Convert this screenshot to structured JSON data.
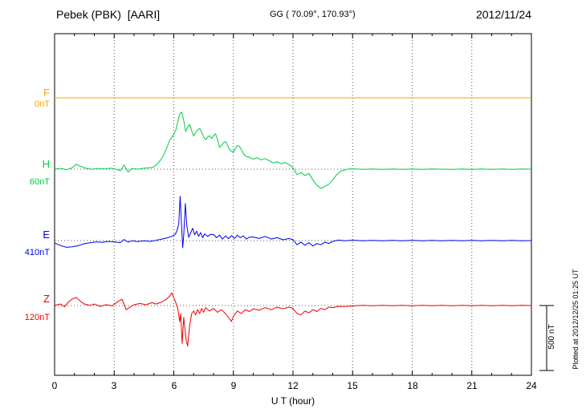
{
  "header": {
    "station": "Pebek (PBK)  [AARI]",
    "coords": "GG ( 70.09°, 170.93°)",
    "date": "2012/11/24"
  },
  "axis": {
    "x_ticks": [
      0,
      3,
      6,
      9,
      12,
      15,
      18,
      21,
      24
    ],
    "x_label": "U T (hour)"
  },
  "right_annotations": {
    "scale_label": "500 nT",
    "plotted_at": "Plotted at 2012/12/25 01:25 UT"
  },
  "chart_data": {
    "type": "line",
    "title": "Pebek (PBK) [AARI] magnetogram 2012/11/24",
    "xlabel": "U T (hour)",
    "x_range": [
      0,
      24
    ],
    "scale_bar_nT": 500,
    "grid": "dotted",
    "series": [
      {
        "name": "F",
        "baseline_label": "0nT",
        "color": "#FFA500",
        "points": [
          [
            0,
            0
          ],
          [
            3,
            0
          ],
          [
            6,
            0
          ],
          [
            9,
            0
          ],
          [
            12,
            0
          ],
          [
            15,
            0
          ],
          [
            18,
            0
          ],
          [
            21,
            0
          ],
          [
            24,
            0
          ]
        ]
      },
      {
        "name": "H",
        "baseline_label": "60nT",
        "color": "#00CC44",
        "points": [
          [
            0,
            2
          ],
          [
            0.3,
            6
          ],
          [
            0.6,
            -4
          ],
          [
            0.9,
            12
          ],
          [
            1.1,
            38
          ],
          [
            1.3,
            22
          ],
          [
            1.6,
            6
          ],
          [
            1.9,
            0
          ],
          [
            2.2,
            6
          ],
          [
            2.5,
            2
          ],
          [
            2.8,
            8
          ],
          [
            3.1,
            0
          ],
          [
            3.3,
            -12
          ],
          [
            3.5,
            32
          ],
          [
            3.7,
            -22
          ],
          [
            3.9,
            6
          ],
          [
            4.2,
            0
          ],
          [
            4.5,
            8
          ],
          [
            4.8,
            12
          ],
          [
            5,
            18
          ],
          [
            5.2,
            45
          ],
          [
            5.4,
            85
          ],
          [
            5.6,
            145
          ],
          [
            5.8,
            225
          ],
          [
            5.95,
            255
          ],
          [
            6.1,
            300
          ],
          [
            6.2,
            365
          ],
          [
            6.3,
            425
          ],
          [
            6.4,
            440
          ],
          [
            6.5,
            375
          ],
          [
            6.6,
            290
          ],
          [
            6.7,
            325
          ],
          [
            6.8,
            345
          ],
          [
            6.9,
            295
          ],
          [
            7,
            255
          ],
          [
            7.1,
            285
          ],
          [
            7.2,
            300
          ],
          [
            7.3,
            315
          ],
          [
            7.4,
            288
          ],
          [
            7.5,
            250
          ],
          [
            7.6,
            228
          ],
          [
            7.7,
            245
          ],
          [
            7.8,
            258
          ],
          [
            7.9,
            235
          ],
          [
            8,
            258
          ],
          [
            8.1,
            272
          ],
          [
            8.2,
            232
          ],
          [
            8.3,
            168
          ],
          [
            8.4,
            182
          ],
          [
            8.5,
            205
          ],
          [
            8.6,
            212
          ],
          [
            8.7,
            188
          ],
          [
            8.8,
            152
          ],
          [
            8.9,
            138
          ],
          [
            9,
            132
          ],
          [
            9.1,
            162
          ],
          [
            9.2,
            182
          ],
          [
            9.3,
            175
          ],
          [
            9.4,
            152
          ],
          [
            9.5,
            122
          ],
          [
            9.6,
            102
          ],
          [
            9.8,
            92
          ],
          [
            10,
            78
          ],
          [
            10.2,
            88
          ],
          [
            10.4,
            72
          ],
          [
            10.6,
            82
          ],
          [
            10.8,
            66
          ],
          [
            11,
            48
          ],
          [
            11.2,
            58
          ],
          [
            11.4,
            42
          ],
          [
            11.6,
            52
          ],
          [
            11.8,
            36
          ],
          [
            12,
            12
          ],
          [
            12.2,
            -42
          ],
          [
            12.4,
            -26
          ],
          [
            12.6,
            -48
          ],
          [
            12.8,
            -32
          ],
          [
            13,
            -82
          ],
          [
            13.2,
            -122
          ],
          [
            13.4,
            -148
          ],
          [
            13.6,
            -132
          ],
          [
            13.8,
            -116
          ],
          [
            14,
            -82
          ],
          [
            14.2,
            -42
          ],
          [
            14.4,
            -16
          ],
          [
            14.6,
            -6
          ],
          [
            14.8,
            2
          ],
          [
            15,
            3
          ],
          [
            15.5,
            -2
          ],
          [
            16,
            2
          ],
          [
            16.5,
            -1
          ],
          [
            17,
            2
          ],
          [
            17.5,
            -2
          ],
          [
            18,
            1
          ],
          [
            18.5,
            -2
          ],
          [
            19,
            2
          ],
          [
            19.5,
            0
          ],
          [
            20,
            -2
          ],
          [
            20.5,
            2
          ],
          [
            21,
            -1
          ],
          [
            21.5,
            1
          ],
          [
            22,
            -2
          ],
          [
            22.5,
            2
          ],
          [
            23,
            -1
          ],
          [
            23.5,
            1
          ],
          [
            24,
            0
          ]
        ]
      },
      {
        "name": "E",
        "baseline_label": "410nT",
        "color": "#0000EE",
        "points": [
          [
            0,
            -18
          ],
          [
            0.3,
            -38
          ],
          [
            0.6,
            -52
          ],
          [
            0.9,
            -48
          ],
          [
            1.2,
            -38
          ],
          [
            1.5,
            -24
          ],
          [
            1.8,
            -16
          ],
          [
            2.1,
            -10
          ],
          [
            2.4,
            -14
          ],
          [
            2.7,
            -6
          ],
          [
            3,
            -10
          ],
          [
            3.3,
            -16
          ],
          [
            3.5,
            8
          ],
          [
            3.7,
            -12
          ],
          [
            3.9,
            -2
          ],
          [
            4.2,
            -8
          ],
          [
            4.5,
            -2
          ],
          [
            4.8,
            -6
          ],
          [
            5.1,
            2
          ],
          [
            5.4,
            12
          ],
          [
            5.7,
            22
          ],
          [
            5.9,
            32
          ],
          [
            6.05,
            45
          ],
          [
            6.15,
            70
          ],
          [
            6.25,
            130
          ],
          [
            6.32,
            340
          ],
          [
            6.4,
            90
          ],
          [
            6.45,
            -55
          ],
          [
            6.5,
            45
          ],
          [
            6.58,
            285
          ],
          [
            6.65,
            120
          ],
          [
            6.75,
            25
          ],
          [
            6.85,
            60
          ],
          [
            6.95,
            95
          ],
          [
            7.05,
            45
          ],
          [
            7.15,
            72
          ],
          [
            7.25,
            32
          ],
          [
            7.35,
            62
          ],
          [
            7.45,
            22
          ],
          [
            7.55,
            52
          ],
          [
            7.7,
            32
          ],
          [
            7.85,
            48
          ],
          [
            8,
            46
          ],
          [
            8.15,
            22
          ],
          [
            8.3,
            42
          ],
          [
            8.45,
            12
          ],
          [
            8.6,
            36
          ],
          [
            8.75,
            15
          ],
          [
            8.9,
            38
          ],
          [
            9.05,
            16
          ],
          [
            9.2,
            42
          ],
          [
            9.35,
            22
          ],
          [
            9.5,
            36
          ],
          [
            9.65,
            12
          ],
          [
            9.8,
            26
          ],
          [
            10,
            28
          ],
          [
            10.3,
            16
          ],
          [
            10.6,
            32
          ],
          [
            10.9,
            12
          ],
          [
            11.2,
            22
          ],
          [
            11.5,
            6
          ],
          [
            11.8,
            16
          ],
          [
            12,
            6
          ],
          [
            12.2,
            -32
          ],
          [
            12.4,
            -12
          ],
          [
            12.6,
            -36
          ],
          [
            12.8,
            -16
          ],
          [
            13,
            -42
          ],
          [
            13.2,
            -22
          ],
          [
            13.4,
            -32
          ],
          [
            13.6,
            -12
          ],
          [
            13.8,
            -22
          ],
          [
            14,
            -6
          ],
          [
            14.3,
            4
          ],
          [
            14.6,
            -2
          ],
          [
            15,
            3
          ],
          [
            15.5,
            -2
          ],
          [
            16,
            2
          ],
          [
            16.5,
            -2
          ],
          [
            17,
            1
          ],
          [
            17.5,
            -1
          ],
          [
            18,
            2
          ],
          [
            18.5,
            -2
          ],
          [
            19,
            1
          ],
          [
            19.5,
            -1
          ],
          [
            20,
            2
          ],
          [
            20.5,
            -1
          ],
          [
            21,
            1
          ],
          [
            21.5,
            -2
          ],
          [
            22,
            2
          ],
          [
            22.5,
            -1
          ],
          [
            23,
            1
          ],
          [
            23.5,
            -1
          ],
          [
            24,
            0
          ]
        ]
      },
      {
        "name": "Z",
        "baseline_label": "120nT",
        "color": "#EE0000",
        "points": [
          [
            0,
            2
          ],
          [
            0.3,
            12
          ],
          [
            0.5,
            -10
          ],
          [
            0.7,
            28
          ],
          [
            0.9,
            52
          ],
          [
            1.1,
            62
          ],
          [
            1.3,
            32
          ],
          [
            1.5,
            12
          ],
          [
            1.8,
            2
          ],
          [
            2,
            12
          ],
          [
            2.3,
            -6
          ],
          [
            2.6,
            6
          ],
          [
            2.9,
            -2
          ],
          [
            3.2,
            32
          ],
          [
            3.4,
            48
          ],
          [
            3.6,
            -32
          ],
          [
            3.8,
            -12
          ],
          [
            4,
            6
          ],
          [
            4.3,
            16
          ],
          [
            4.6,
            6
          ],
          [
            4.9,
            22
          ],
          [
            5.1,
            12
          ],
          [
            5.4,
            28
          ],
          [
            5.6,
            45
          ],
          [
            5.8,
            72
          ],
          [
            5.9,
            98
          ],
          [
            6,
            62
          ],
          [
            6.1,
            22
          ],
          [
            6.2,
            -22
          ],
          [
            6.3,
            -125
          ],
          [
            6.35,
            -62
          ],
          [
            6.42,
            -292
          ],
          [
            6.5,
            -92
          ],
          [
            6.56,
            -182
          ],
          [
            6.63,
            -272
          ],
          [
            6.7,
            -312
          ],
          [
            6.8,
            -152
          ],
          [
            6.9,
            -62
          ],
          [
            7,
            -42
          ],
          [
            7.1,
            -72
          ],
          [
            7.2,
            -32
          ],
          [
            7.3,
            -62
          ],
          [
            7.4,
            -22
          ],
          [
            7.5,
            -52
          ],
          [
            7.6,
            -16
          ],
          [
            7.8,
            -42
          ],
          [
            8,
            -22
          ],
          [
            8.2,
            -52
          ],
          [
            8.4,
            -32
          ],
          [
            8.6,
            -62
          ],
          [
            8.8,
            -102
          ],
          [
            8.9,
            -122
          ],
          [
            9,
            -82
          ],
          [
            9.2,
            -42
          ],
          [
            9.4,
            -62
          ],
          [
            9.6,
            -32
          ],
          [
            9.8,
            -46
          ],
          [
            10,
            -26
          ],
          [
            10.3,
            -36
          ],
          [
            10.6,
            -16
          ],
          [
            10.9,
            -32
          ],
          [
            11.2,
            -12
          ],
          [
            11.5,
            -26
          ],
          [
            11.8,
            -12
          ],
          [
            12,
            -22
          ],
          [
            12.2,
            -62
          ],
          [
            12.4,
            -72
          ],
          [
            12.6,
            -42
          ],
          [
            12.8,
            -56
          ],
          [
            13,
            -32
          ],
          [
            13.2,
            -46
          ],
          [
            13.4,
            -22
          ],
          [
            13.6,
            -32
          ],
          [
            13.8,
            -12
          ],
          [
            14,
            -16
          ],
          [
            14.3,
            -6
          ],
          [
            14.6,
            -8
          ],
          [
            15,
            -3
          ],
          [
            15.5,
            2
          ],
          [
            16,
            -2
          ],
          [
            16.5,
            2
          ],
          [
            17,
            -1
          ],
          [
            17.5,
            1
          ],
          [
            18,
            -2
          ],
          [
            18.5,
            2
          ],
          [
            19,
            -1
          ],
          [
            19.5,
            1
          ],
          [
            20,
            -2
          ],
          [
            20.5,
            1
          ],
          [
            21,
            -1
          ],
          [
            21.5,
            2
          ],
          [
            22,
            -2
          ],
          [
            22.5,
            1
          ],
          [
            23,
            -1
          ],
          [
            23.5,
            1
          ],
          [
            24,
            0
          ]
        ]
      }
    ]
  }
}
